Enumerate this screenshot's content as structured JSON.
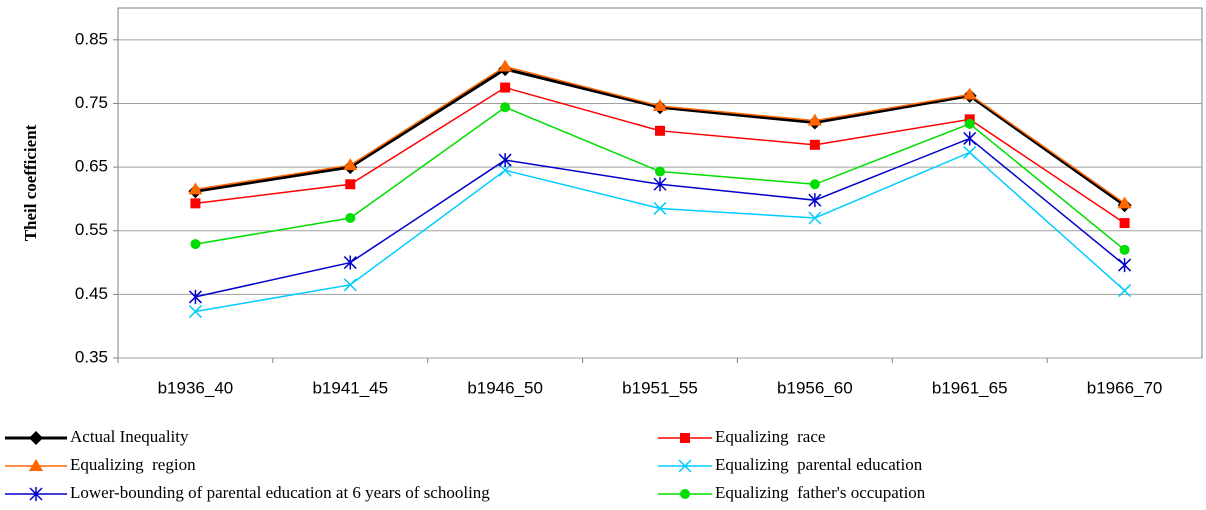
{
  "chart_data": {
    "type": "line",
    "y_label": "Theil coefficient",
    "categories": [
      "b1936_40",
      "b1941_45",
      "b1946_50",
      "b1951_55",
      "b1956_60",
      "b1961_65",
      "b1966_70"
    ],
    "series": [
      {
        "name": "Actual Inequality",
        "color": "#000000",
        "marker": "diamond",
        "values": [
          0.612,
          0.65,
          0.804,
          0.744,
          0.72,
          0.762,
          0.59
        ]
      },
      {
        "name": "Equalizing  race",
        "color": "#ff0000",
        "marker": "square",
        "values": [
          0.593,
          0.623,
          0.775,
          0.707,
          0.685,
          0.725,
          0.562
        ]
      },
      {
        "name": "Equalizing  region",
        "color": "#ff6600",
        "marker": "triangle",
        "values": [
          0.615,
          0.653,
          0.808,
          0.746,
          0.723,
          0.764,
          0.593
        ]
      },
      {
        "name": "Equalizing  parental education",
        "color": "#00ccff",
        "marker": "x",
        "values": [
          0.423,
          0.465,
          0.645,
          0.585,
          0.57,
          0.673,
          0.456
        ]
      },
      {
        "name": "Lower-bounding of parental education at 6 years of schooling",
        "color": "#0000cc",
        "marker": "star",
        "values": [
          0.446,
          0.5,
          0.661,
          0.623,
          0.598,
          0.695,
          0.496
        ]
      },
      {
        "name": "Equalizing  father's occupation",
        "color": "#00dd00",
        "marker": "circle",
        "values": [
          0.529,
          0.57,
          0.744,
          0.643,
          0.623,
          0.718,
          0.52
        ]
      }
    ],
    "ylim": [
      0.35,
      0.9
    ],
    "yticks": [
      0.35,
      0.45,
      0.55,
      0.65,
      0.75,
      0.85
    ],
    "grid": true
  }
}
